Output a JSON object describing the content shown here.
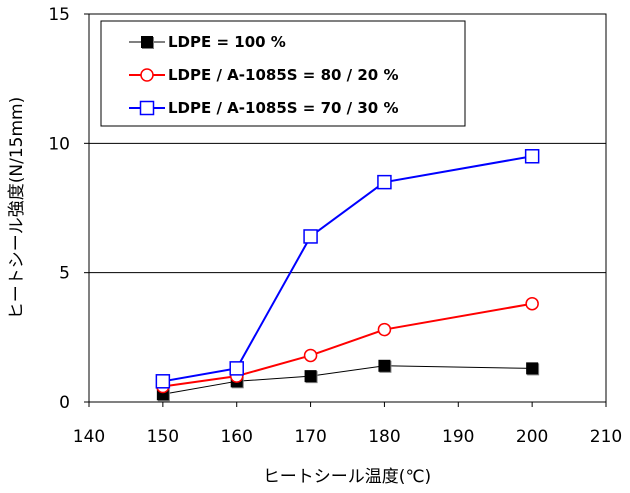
{
  "chart_data": {
    "type": "line",
    "xlabel": "ヒートシール温度(℃)",
    "ylabel": "ヒートシール強度(N/15mm)",
    "xlim": [
      140,
      210
    ],
    "ylim": [
      0,
      15
    ],
    "x_ticks": [
      "140",
      "150",
      "160",
      "170",
      "180",
      "190",
      "200",
      "210"
    ],
    "y_ticks": [
      "0",
      "5",
      "10",
      "15"
    ],
    "grid": "horizontal lines at 5 and 10",
    "legend_position": "top-left",
    "series": [
      {
        "name": "LDPE = 100 %",
        "color": "#000000",
        "marker": "filled-square",
        "x": [
          150,
          160,
          170,
          180,
          200
        ],
        "y": [
          0.3,
          0.8,
          1.0,
          1.4,
          1.3
        ]
      },
      {
        "name": "LDPE / A-1085S = 80 / 20 %",
        "color": "#ff0000",
        "marker": "open-circle",
        "x": [
          150,
          160,
          170,
          180,
          200
        ],
        "y": [
          0.6,
          1.0,
          1.8,
          2.8,
          3.8
        ]
      },
      {
        "name": "LDPE / A-1085S = 70 / 30 %",
        "color": "#0000ff",
        "marker": "open-square",
        "x": [
          150,
          160,
          170,
          180,
          200
        ],
        "y": [
          0.8,
          1.3,
          6.4,
          8.5,
          9.5
        ]
      }
    ]
  }
}
